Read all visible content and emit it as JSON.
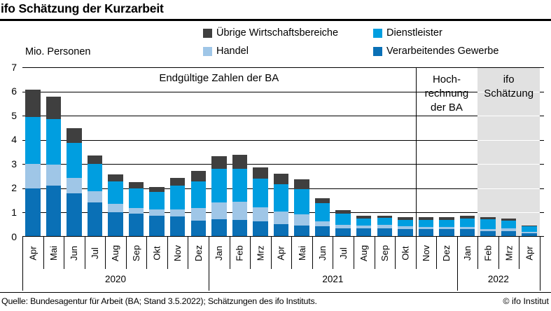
{
  "title": "ifo Schätzung der Kurzarbeit",
  "y_axis_title": "Mio. Personen",
  "legend": [
    {
      "label": "Übrige Wirtschaftsbereiche",
      "color": "#3F3F3F"
    },
    {
      "label": "Dienstleister",
      "color": "#009EE0"
    },
    {
      "label": "Handel",
      "color": "#9FC6E7"
    },
    {
      "label": "Verarbeitendes Gewerbe",
      "color": "#0A70B6"
    }
  ],
  "footer": {
    "source": "Quelle: Bundesagentur für Arbeit (BA; Stand 3.5.2022); Schätzungen des ifo Instituts.",
    "copyright": "© ifo Institut"
  },
  "chart_data": {
    "type": "bar",
    "stacked": true,
    "title": "ifo Schätzung der Kurzarbeit",
    "ylabel": "Mio. Personen",
    "ylim": [
      0,
      7
    ],
    "yticks": [
      0,
      1,
      2,
      3,
      4,
      5,
      6,
      7
    ],
    "grid": true,
    "month_labels": [
      "Apr",
      "Mai",
      "Jun",
      "Jul",
      "Aug",
      "Sep",
      "Okt",
      "Nov",
      "Dez",
      "Jan",
      "Feb",
      "Mrz",
      "Apr",
      "Mai",
      "Jun",
      "Jul",
      "Aug",
      "Sep",
      "Okt",
      "Nov",
      "Dez",
      "Jan",
      "Feb",
      "Mrz",
      "Apr"
    ],
    "categories": [
      "Apr 2020",
      "Mai 2020",
      "Jun 2020",
      "Jul 2020",
      "Aug 2020",
      "Sep 2020",
      "Okt 2020",
      "Nov 2020",
      "Dez 2020",
      "Jan 2021",
      "Feb 2021",
      "Mrz 2021",
      "Apr 2021",
      "Mai 2021",
      "Jun 2021",
      "Jul 2021",
      "Aug 2021",
      "Sep 2021",
      "Okt 2021",
      "Nov 2021",
      "Dez 2021",
      "Jan 2022",
      "Feb 2022",
      "Mrz 2022",
      "Apr 2022"
    ],
    "years": [
      {
        "label": "2020",
        "months": 9
      },
      {
        "label": "2021",
        "months": 12
      },
      {
        "label": "2022",
        "months": 4
      }
    ],
    "series": [
      {
        "name": "Verarbeitendes Gewerbe",
        "color": "#0A70B6",
        "values": [
          1.98,
          2.08,
          1.77,
          1.4,
          0.99,
          0.94,
          0.84,
          0.8,
          0.65,
          0.7,
          0.68,
          0.61,
          0.5,
          0.43,
          0.4,
          0.33,
          0.31,
          0.32,
          0.29,
          0.28,
          0.28,
          0.28,
          0.21,
          0.21,
          0.12
        ]
      },
      {
        "name": "Handel",
        "color": "#9FC6E7",
        "values": [
          1.01,
          0.87,
          0.62,
          0.46,
          0.34,
          0.22,
          0.25,
          0.29,
          0.51,
          0.7,
          0.74,
          0.58,
          0.51,
          0.47,
          0.2,
          0.14,
          0.12,
          0.13,
          0.13,
          0.1,
          0.09,
          0.09,
          0.08,
          0.1,
          0.05
        ]
      },
      {
        "name": "Dienstleister",
        "color": "#009EE0",
        "values": [
          1.94,
          1.88,
          1.47,
          1.11,
          0.94,
          0.82,
          0.72,
          0.99,
          1.09,
          1.37,
          1.35,
          1.18,
          1.14,
          1.03,
          0.76,
          0.45,
          0.29,
          0.29,
          0.25,
          0.3,
          0.31,
          0.36,
          0.41,
          0.32,
          0.24
        ]
      },
      {
        "name": "Übrige Wirtschaftsbereiche",
        "color": "#3F3F3F",
        "values": [
          1.11,
          0.92,
          0.6,
          0.36,
          0.29,
          0.26,
          0.22,
          0.31,
          0.43,
          0.53,
          0.58,
          0.46,
          0.43,
          0.42,
          0.19,
          0.16,
          0.12,
          0.1,
          0.1,
          0.11,
          0.11,
          0.1,
          0.09,
          0.09,
          0.03
        ]
      }
    ],
    "annotations": [
      {
        "name": "endgueltige-zahlen",
        "lines": [
          "Endgültige Zahlen der BA"
        ],
        "from_month": 0,
        "to_month": 19
      },
      {
        "name": "hochrechnung",
        "lines": [
          "Hoch-",
          "rechnung",
          "der BA"
        ],
        "from_month": 19,
        "to_month": 22
      },
      {
        "name": "ifo-schaetzung",
        "lines": [
          "ifo",
          "Schätzung"
        ],
        "from_month": 22,
        "to_month": 25,
        "shaded": true,
        "shade_color": "#E1E1E1"
      }
    ]
  }
}
